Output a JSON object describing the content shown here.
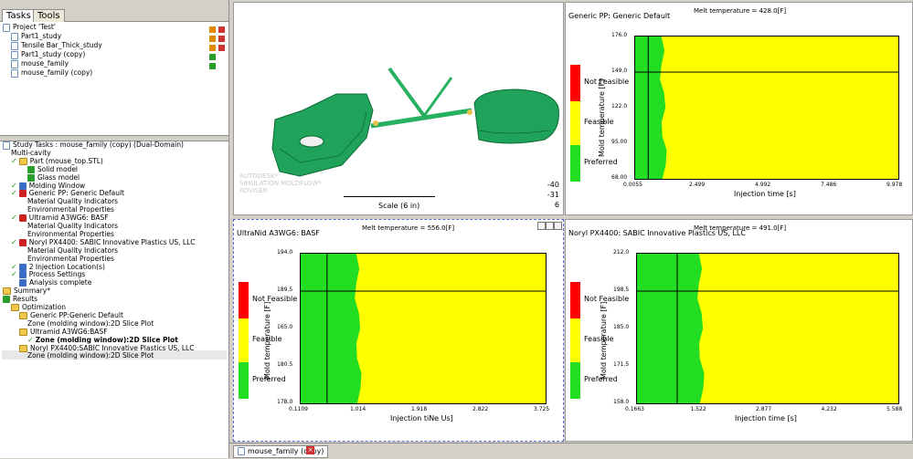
{
  "tabs": [
    "Tasks",
    "Tools"
  ],
  "project_tree": [
    {
      "label": "Project 'Test'",
      "icon": "project-icon",
      "indent": 0
    },
    {
      "label": "Part1_study",
      "icon": "study-icon",
      "indent": 1
    },
    {
      "label": "Tensile Bar_Thick_study",
      "icon": "study-icon",
      "indent": 1
    },
    {
      "label": "Part1_study (copy)",
      "icon": "study-icon",
      "indent": 1
    },
    {
      "label": "mouse_family",
      "icon": "study-icon",
      "indent": 1
    },
    {
      "label": "mouse_family (copy)",
      "icon": "study-icon",
      "indent": 1
    }
  ],
  "study_tasks": [
    {
      "label": "Study Tasks : mouse_family (copy) (Dual-Domain)",
      "indent": 0,
      "check": false,
      "icon": "study-icon"
    },
    {
      "label": "Multi-cavity",
      "indent": 1,
      "check": false,
      "icon": ""
    },
    {
      "label": "Part (mouse_top.STL)",
      "indent": 1,
      "check": true,
      "icon": "part-icon"
    },
    {
      "label": "Solid model",
      "indent": 3,
      "check": false,
      "icon": "solid-model-icon"
    },
    {
      "label": "Glass model",
      "indent": 3,
      "check": false,
      "icon": "glass-model-icon"
    },
    {
      "label": "Molding Window",
      "indent": 1,
      "check": true,
      "icon": "molding-window-icon"
    },
    {
      "label": "Generic PP: Generic Default",
      "indent": 1,
      "check": true,
      "icon": "material-icon"
    },
    {
      "label": "Material Quality Indicators",
      "indent": 3,
      "check": false,
      "icon": ""
    },
    {
      "label": "Environmental Properties",
      "indent": 3,
      "check": false,
      "icon": ""
    },
    {
      "label": "Ultramid A3WG6: BASF",
      "indent": 1,
      "check": true,
      "icon": "material-icon"
    },
    {
      "label": "Material Quality Indicators",
      "indent": 3,
      "check": false,
      "icon": ""
    },
    {
      "label": "Environmental Properties",
      "indent": 3,
      "check": false,
      "icon": ""
    },
    {
      "label": "Noryl PX4400: SABIC Innovative Plastics US, LLC",
      "indent": 1,
      "check": true,
      "icon": "material-icon"
    },
    {
      "label": "Material Quality Indicators",
      "indent": 3,
      "check": false,
      "icon": ""
    },
    {
      "label": "Environmental Properties",
      "indent": 3,
      "check": false,
      "icon": ""
    },
    {
      "label": "2 Injection Location(s)",
      "indent": 1,
      "check": true,
      "icon": "injection-icon"
    },
    {
      "label": "Process Settings",
      "indent": 1,
      "check": true,
      "icon": "process-icon"
    },
    {
      "label": "Analysis complete",
      "indent": 2,
      "check": false,
      "icon": "analysis-icon"
    },
    {
      "label": "Summary*",
      "indent": 0,
      "check": false,
      "icon": "summary-icon"
    },
    {
      "label": "Results",
      "indent": 0,
      "check": false,
      "icon": "results-icon"
    },
    {
      "label": "Optimization",
      "indent": 1,
      "check": false,
      "icon": "folder-icon"
    },
    {
      "label": "Generic PP:Generic Default",
      "indent": 2,
      "check": false,
      "icon": "folder-icon"
    },
    {
      "label": "Zone (molding window):2D Slice Plot",
      "indent": 3,
      "check": false,
      "icon": ""
    },
    {
      "label": "Ultramid A3WG6:BASF",
      "indent": 2,
      "check": false,
      "icon": "folder-icon"
    },
    {
      "label": "Zone (molding window):2D Slice Plot",
      "indent": 3,
      "check": true,
      "icon": "",
      "bold": true
    },
    {
      "label": "Noryl PX4400:SABIC Innovative Plastics US, LLC",
      "indent": 2,
      "check": false,
      "icon": "folder-icon"
    },
    {
      "label": "Zone (molding window):2D Slice Plot",
      "indent": 3,
      "check": false,
      "icon": ""
    }
  ],
  "viewport": {
    "watermark": [
      "AUTODESK*",
      "SIMULATION MOLDFLOW*",
      "ADVISER"
    ],
    "scale_label": "Scale (6 in)",
    "coords": [
      "-40",
      "-31",
      "6"
    ]
  },
  "colors": {
    "not_feasible": "#ff0000",
    "feasible": "#ffff00",
    "preferred": "#22dd22"
  },
  "legend": {
    "not_feasible": "Not Feasible",
    "feasible": "Feasible",
    "preferred": "Preferred"
  },
  "bottom_tab": "mouse_family (copy)",
  "chart_data": [
    {
      "type": "heatmap",
      "title": "Generic PP: Generic Default",
      "subtitle": "Melt temperature = 428.0[F]",
      "xlabel": "Injection time [s]",
      "ylabel": "Mold temperature [F]",
      "xticks": [
        "0.0055",
        "2.499",
        "4.992",
        "7.486",
        "9.978"
      ],
      "yticks": [
        "176.0",
        "149.0",
        "122.0",
        "95.00",
        "68.00"
      ],
      "xlim": [
        0.0055,
        9.978
      ],
      "ylim": [
        68,
        176
      ],
      "crosshair": {
        "x": 0.5,
        "y": 149
      },
      "preferred_boundary_x": 1.0
    },
    {
      "type": "heatmap",
      "title": "UltraNid A3WG6: BASF",
      "subtitle": "Melt temperature = 556.0[F]",
      "xlabel": "Injection tiNe Us]",
      "ylabel": "Mold temperature [F]",
      "xticks": [
        "0.1109",
        "1.014",
        "1.918",
        "2.822",
        "3.725"
      ],
      "yticks": [
        "194.0",
        "189.5",
        "165.0",
        "180.5",
        "17B.0"
      ],
      "xlim": [
        0.1109,
        3.725
      ],
      "ylim": [
        176,
        194
      ],
      "crosshair": {
        "x": 0.5,
        "y": 189.5
      },
      "preferred_boundary_x": 0.93
    },
    {
      "type": "heatmap",
      "title": "Noryl PX4400: SABIC Innovative Plastics US, LLC",
      "subtitle": "Melt temperature = 491.0[F]",
      "xlabel": "Injection time [s]",
      "ylabel": "Mold temperature [F]",
      "xticks": [
        "0.1663",
        "1.522",
        "2.877",
        "4.232",
        "5.588"
      ],
      "yticks": [
        "212.0",
        "198.5",
        "185.0",
        "171.5",
        "158.0"
      ],
      "xlim": [
        0.1663,
        5.588
      ],
      "ylim": [
        158,
        212
      ],
      "crosshair": {
        "x": 1.0,
        "y": 198.5
      },
      "preferred_boundary_x": 1.45
    }
  ]
}
